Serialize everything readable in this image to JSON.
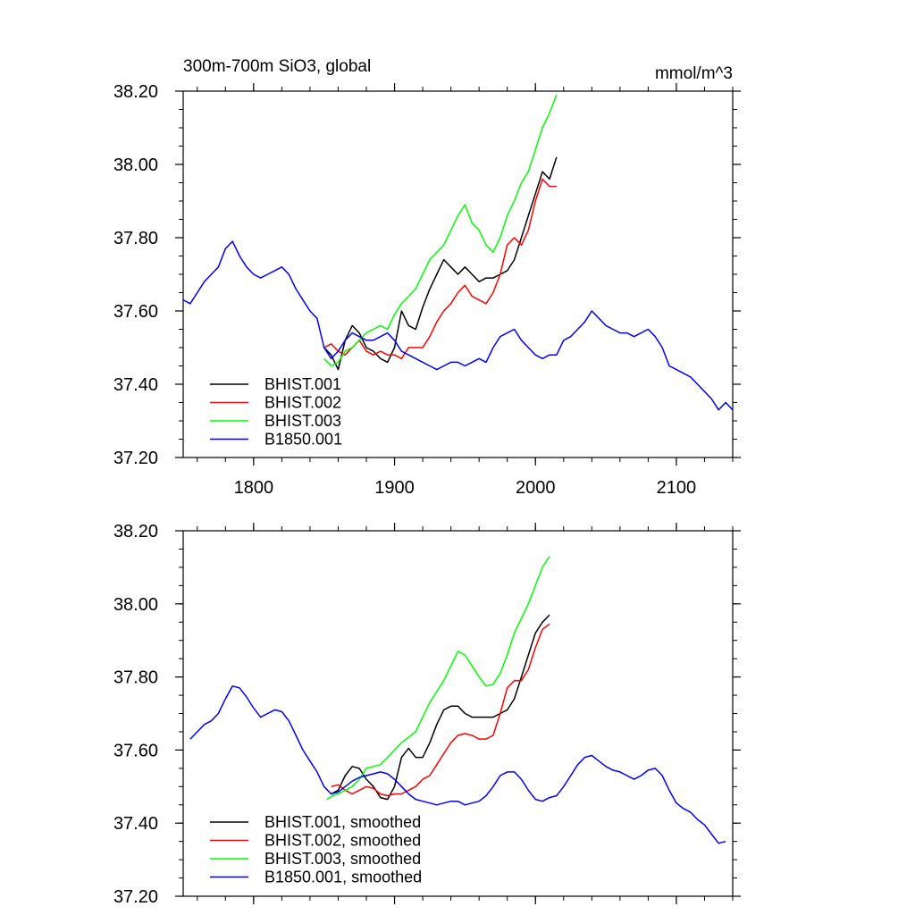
{
  "chart_data": [
    {
      "type": "line",
      "title": "300m-700m SiO3, global",
      "units": "mmol/m^3",
      "xlim": [
        1750,
        2140
      ],
      "ylim": [
        37.2,
        38.2
      ],
      "xticks": [
        1800,
        1900,
        2000,
        2100
      ],
      "xtick_labels": [
        "1800",
        "1900",
        "2000",
        "2100"
      ],
      "yticks": [
        37.2,
        37.4,
        37.6,
        37.8,
        38.0,
        38.2
      ],
      "ytick_labels": [
        "37.20",
        "37.40",
        "37.60",
        "37.80",
        "38.00",
        "38.20"
      ],
      "legend": {
        "location": "lower-left"
      },
      "series": [
        {
          "name": "BHIST.001",
          "color": "#000000",
          "x": [
            1850,
            1855,
            1860,
            1865,
            1870,
            1875,
            1880,
            1885,
            1890,
            1895,
            1900,
            1905,
            1910,
            1915,
            1920,
            1925,
            1930,
            1935,
            1940,
            1945,
            1950,
            1955,
            1960,
            1965,
            1970,
            1975,
            1980,
            1985,
            1990,
            1995,
            2000,
            2005,
            2010,
            2015
          ],
          "y": [
            37.5,
            37.48,
            37.44,
            37.52,
            37.56,
            37.54,
            37.5,
            37.49,
            37.47,
            37.46,
            37.5,
            37.6,
            37.56,
            37.55,
            37.61,
            37.66,
            37.7,
            37.74,
            37.72,
            37.7,
            37.72,
            37.7,
            37.68,
            37.69,
            37.69,
            37.7,
            37.71,
            37.74,
            37.8,
            37.86,
            37.92,
            37.98,
            37.96,
            38.02
          ]
        },
        {
          "name": "BHIST.002",
          "color": "#ff0000",
          "x": [
            1850,
            1855,
            1860,
            1865,
            1870,
            1875,
            1880,
            1885,
            1890,
            1895,
            1900,
            1905,
            1910,
            1915,
            1920,
            1925,
            1930,
            1935,
            1940,
            1945,
            1950,
            1955,
            1960,
            1965,
            1970,
            1975,
            1980,
            1985,
            1990,
            1995,
            2000,
            2005,
            2010,
            2015
          ],
          "y": [
            37.5,
            37.51,
            37.49,
            37.48,
            37.5,
            37.52,
            37.49,
            37.48,
            37.49,
            37.48,
            37.48,
            37.47,
            37.5,
            37.5,
            37.5,
            37.53,
            37.57,
            37.6,
            37.62,
            37.65,
            37.67,
            37.64,
            37.63,
            37.62,
            37.65,
            37.7,
            37.78,
            37.8,
            37.78,
            37.82,
            37.9,
            37.96,
            37.94,
            37.94
          ]
        },
        {
          "name": "BHIST.003",
          "color": "#00ff00",
          "x": [
            1850,
            1855,
            1860,
            1865,
            1870,
            1875,
            1880,
            1885,
            1890,
            1895,
            1900,
            1905,
            1910,
            1915,
            1920,
            1925,
            1930,
            1935,
            1940,
            1945,
            1950,
            1955,
            1960,
            1965,
            1970,
            1975,
            1980,
            1985,
            1990,
            1995,
            2000,
            2005,
            2010,
            2015
          ],
          "y": [
            37.47,
            37.45,
            37.46,
            37.49,
            37.5,
            37.52,
            37.54,
            37.55,
            37.56,
            37.55,
            37.59,
            37.62,
            37.64,
            37.66,
            37.7,
            37.74,
            37.76,
            37.78,
            37.82,
            37.86,
            37.89,
            37.84,
            37.82,
            37.78,
            37.76,
            37.8,
            37.86,
            37.9,
            37.95,
            37.98,
            38.04,
            38.1,
            38.14,
            38.19
          ]
        },
        {
          "name": "B1850.001",
          "color": "#0000ff",
          "x": [
            1750,
            1755,
            1760,
            1765,
            1770,
            1775,
            1780,
            1785,
            1790,
            1795,
            1800,
            1805,
            1810,
            1815,
            1820,
            1825,
            1830,
            1835,
            1840,
            1845,
            1850,
            1855,
            1860,
            1865,
            1870,
            1875,
            1880,
            1885,
            1890,
            1895,
            1900,
            1905,
            1910,
            1915,
            1920,
            1925,
            1930,
            1935,
            1940,
            1945,
            1950,
            1955,
            1960,
            1965,
            1970,
            1975,
            1980,
            1985,
            1990,
            1995,
            2000,
            2005,
            2010,
            2015,
            2020,
            2025,
            2030,
            2035,
            2040,
            2045,
            2050,
            2055,
            2060,
            2065,
            2070,
            2075,
            2080,
            2085,
            2090,
            2095,
            2100,
            2105,
            2110,
            2115,
            2120,
            2125,
            2130,
            2135,
            2140
          ],
          "y": [
            37.63,
            37.62,
            37.65,
            37.68,
            37.7,
            37.72,
            37.77,
            37.79,
            37.75,
            37.72,
            37.7,
            37.69,
            37.7,
            37.71,
            37.72,
            37.7,
            37.66,
            37.63,
            37.6,
            37.58,
            37.5,
            37.47,
            37.49,
            37.52,
            37.54,
            37.53,
            37.52,
            37.52,
            37.53,
            37.54,
            37.52,
            37.49,
            37.48,
            37.47,
            37.46,
            37.45,
            37.44,
            37.45,
            37.46,
            37.46,
            37.45,
            37.46,
            37.47,
            37.46,
            37.5,
            37.53,
            37.54,
            37.55,
            37.52,
            37.5,
            37.48,
            37.47,
            37.48,
            37.48,
            37.52,
            37.53,
            37.55,
            37.57,
            37.6,
            37.58,
            37.56,
            37.55,
            37.54,
            37.54,
            37.53,
            37.54,
            37.55,
            37.53,
            37.5,
            37.45,
            37.44,
            37.43,
            37.42,
            37.4,
            37.38,
            37.36,
            37.33,
            37.35,
            37.33
          ]
        }
      ]
    },
    {
      "type": "line",
      "title": "",
      "xlim": [
        1750,
        2140
      ],
      "ylim": [
        37.2,
        38.2
      ],
      "xticks": [
        1800,
        1900,
        2000,
        2100
      ],
      "yticks": [
        37.2,
        37.4,
        37.6,
        37.8,
        38.0,
        38.2
      ],
      "ytick_labels": [
        "37.20",
        "37.40",
        "37.60",
        "37.80",
        "38.00",
        "38.20"
      ],
      "legend": {
        "location": "lower-left"
      },
      "series": [
        {
          "name": "BHIST.001, smoothed",
          "color": "#000000",
          "x": [
            1855,
            1860,
            1865,
            1870,
            1875,
            1880,
            1885,
            1890,
            1895,
            1900,
            1905,
            1910,
            1915,
            1920,
            1925,
            1930,
            1935,
            1940,
            1945,
            1950,
            1955,
            1960,
            1965,
            1970,
            1975,
            1980,
            1985,
            1990,
            1995,
            2000,
            2005,
            2010
          ],
          "y": [
            37.48,
            37.49,
            37.53,
            37.555,
            37.55,
            37.52,
            37.5,
            37.47,
            37.465,
            37.5,
            37.58,
            37.605,
            37.58,
            37.58,
            37.62,
            37.67,
            37.71,
            37.72,
            37.72,
            37.7,
            37.69,
            37.69,
            37.69,
            37.69,
            37.7,
            37.71,
            37.74,
            37.8,
            37.86,
            37.92,
            37.95,
            37.97
          ]
        },
        {
          "name": "BHIST.002, smoothed",
          "color": "#ff0000",
          "x": [
            1855,
            1860,
            1865,
            1870,
            1875,
            1880,
            1885,
            1890,
            1895,
            1900,
            1905,
            1910,
            1915,
            1920,
            1925,
            1930,
            1935,
            1940,
            1945,
            1950,
            1955,
            1960,
            1965,
            1970,
            1975,
            1980,
            1985,
            1990,
            1995,
            2000,
            2005,
            2010
          ],
          "y": [
            37.5,
            37.505,
            37.49,
            37.48,
            37.49,
            37.5,
            37.495,
            37.48,
            37.475,
            37.48,
            37.48,
            37.49,
            37.5,
            37.52,
            37.53,
            37.56,
            37.59,
            37.62,
            37.64,
            37.645,
            37.64,
            37.63,
            37.63,
            37.64,
            37.7,
            37.77,
            37.79,
            37.79,
            37.82,
            37.88,
            37.93,
            37.945
          ]
        },
        {
          "name": "BHIST.003, smoothed",
          "color": "#00ff00",
          "x": [
            1852,
            1856,
            1860,
            1865,
            1870,
            1875,
            1880,
            1885,
            1890,
            1895,
            1900,
            1905,
            1910,
            1915,
            1920,
            1925,
            1930,
            1935,
            1940,
            1945,
            1950,
            1955,
            1960,
            1965,
            1970,
            1975,
            1980,
            1985,
            1990,
            1995,
            2000,
            2005,
            2010
          ],
          "y": [
            37.465,
            37.475,
            37.48,
            37.49,
            37.5,
            37.52,
            37.55,
            37.555,
            37.56,
            37.58,
            37.6,
            37.62,
            37.635,
            37.65,
            37.69,
            37.73,
            37.76,
            37.79,
            37.83,
            37.87,
            37.86,
            37.83,
            37.8,
            37.775,
            37.78,
            37.81,
            37.86,
            37.92,
            37.96,
            38.0,
            38.05,
            38.1,
            38.13
          ]
        },
        {
          "name": "B1850.001, smoothed",
          "color": "#0000ff",
          "x": [
            1755,
            1760,
            1765,
            1770,
            1775,
            1780,
            1785,
            1790,
            1795,
            1800,
            1805,
            1810,
            1815,
            1820,
            1825,
            1830,
            1835,
            1840,
            1845,
            1850,
            1855,
            1860,
            1865,
            1870,
            1875,
            1880,
            1885,
            1890,
            1895,
            1900,
            1905,
            1910,
            1915,
            1920,
            1925,
            1930,
            1935,
            1940,
            1945,
            1950,
            1955,
            1960,
            1965,
            1970,
            1975,
            1980,
            1985,
            1990,
            1995,
            2000,
            2005,
            2010,
            2015,
            2020,
            2025,
            2030,
            2035,
            2040,
            2045,
            2050,
            2055,
            2060,
            2065,
            2070,
            2075,
            2080,
            2085,
            2090,
            2095,
            2100,
            2105,
            2110,
            2115,
            2120,
            2125,
            2130,
            2135
          ],
          "y": [
            37.63,
            37.65,
            37.67,
            37.68,
            37.7,
            37.74,
            37.775,
            37.77,
            37.745,
            37.715,
            37.69,
            37.7,
            37.71,
            37.705,
            37.68,
            37.64,
            37.6,
            37.57,
            37.54,
            37.5,
            37.48,
            37.485,
            37.5,
            37.515,
            37.525,
            37.53,
            37.535,
            37.54,
            37.535,
            37.52,
            37.5,
            37.48,
            37.465,
            37.46,
            37.455,
            37.45,
            37.455,
            37.46,
            37.46,
            37.45,
            37.455,
            37.46,
            37.475,
            37.5,
            37.53,
            37.54,
            37.54,
            37.52,
            37.49,
            37.465,
            37.46,
            37.47,
            37.475,
            37.5,
            37.53,
            37.56,
            37.58,
            37.585,
            37.57,
            37.555,
            37.545,
            37.54,
            37.53,
            37.52,
            37.53,
            37.545,
            37.55,
            37.53,
            37.49,
            37.455,
            37.44,
            37.43,
            37.41,
            37.395,
            37.37,
            37.345,
            37.35
          ]
        }
      ]
    }
  ]
}
